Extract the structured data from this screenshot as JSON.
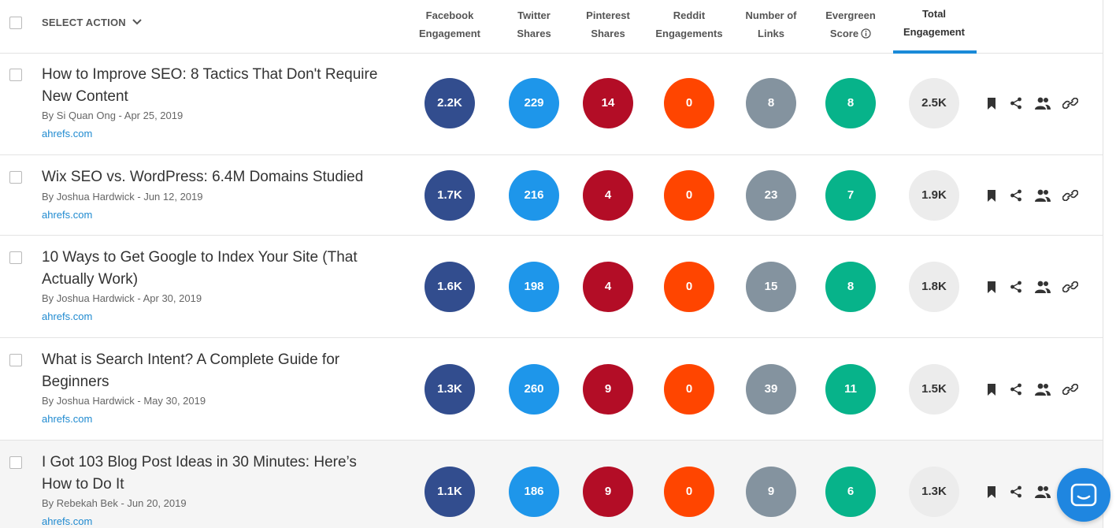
{
  "header": {
    "select_action_label": "SELECT ACTION",
    "columns": [
      {
        "line1": "Facebook",
        "line2": "Engagement"
      },
      {
        "line1": "Twitter",
        "line2": "Shares"
      },
      {
        "line1": "Pinterest",
        "line2": "Shares"
      },
      {
        "line1": "Reddit",
        "line2": "Engagements"
      },
      {
        "line1": "Number of",
        "line2": "Links"
      },
      {
        "line1": "Evergreen",
        "line2": "Score"
      },
      {
        "line1": "Total",
        "line2": "Engagement"
      }
    ],
    "active_sort_column": "Total Engagement"
  },
  "rows": [
    {
      "title_line1": "How to Improve SEO: 8 Tactics That Don't Require",
      "title_line2": "New Content",
      "byline": "By Si Quan Ong - Apr 25, 2019",
      "domain": "ahrefs.com",
      "facebook": "2.2K",
      "twitter": "229",
      "pinterest": "14",
      "reddit": "0",
      "links": "8",
      "evergreen": "8",
      "total": "2.5K"
    },
    {
      "title_line1": "Wix SEO vs. WordPress: 6.4M Domains Studied",
      "title_line2": "",
      "byline": "By Joshua Hardwick - Jun 12, 2019",
      "domain": "ahrefs.com",
      "facebook": "1.7K",
      "twitter": "216",
      "pinterest": "4",
      "reddit": "0",
      "links": "23",
      "evergreen": "7",
      "total": "1.9K"
    },
    {
      "title_line1": "10 Ways to Get Google to Index Your Site (That",
      "title_line2": "Actually Work)",
      "byline": "By Joshua Hardwick - Apr 30, 2019",
      "domain": "ahrefs.com",
      "facebook": "1.6K",
      "twitter": "198",
      "pinterest": "4",
      "reddit": "0",
      "links": "15",
      "evergreen": "8",
      "total": "1.8K"
    },
    {
      "title_line1": "What is Search Intent? A Complete Guide for",
      "title_line2": "Beginners",
      "byline": "By Joshua Hardwick - May 30, 2019",
      "domain": "ahrefs.com",
      "facebook": "1.3K",
      "twitter": "260",
      "pinterest": "9",
      "reddit": "0",
      "links": "39",
      "evergreen": "11",
      "total": "1.5K"
    },
    {
      "title_line1": "I Got 103 Blog Post Ideas in 30 Minutes: Here’s",
      "title_line2": "How to Do It",
      "byline": "By Rebekah Bek - Jun 20, 2019",
      "domain": "ahrefs.com",
      "facebook": "1.1K",
      "twitter": "186",
      "pinterest": "9",
      "reddit": "0",
      "links": "9",
      "evergreen": "6",
      "total": "1.3K"
    }
  ],
  "icons": {
    "row_actions": [
      "bookmark-icon",
      "share-icon",
      "users-icon",
      "link-icon"
    ],
    "chat": "chat-icon"
  },
  "colors": {
    "facebook": "#324d8e",
    "twitter": "#1e96ea",
    "pinterest": "#b30d26",
    "reddit": "#ff4500",
    "links": "#84939f",
    "evergreen": "#07b38a",
    "total": "#ececec",
    "accent": "#1a8ad8"
  }
}
